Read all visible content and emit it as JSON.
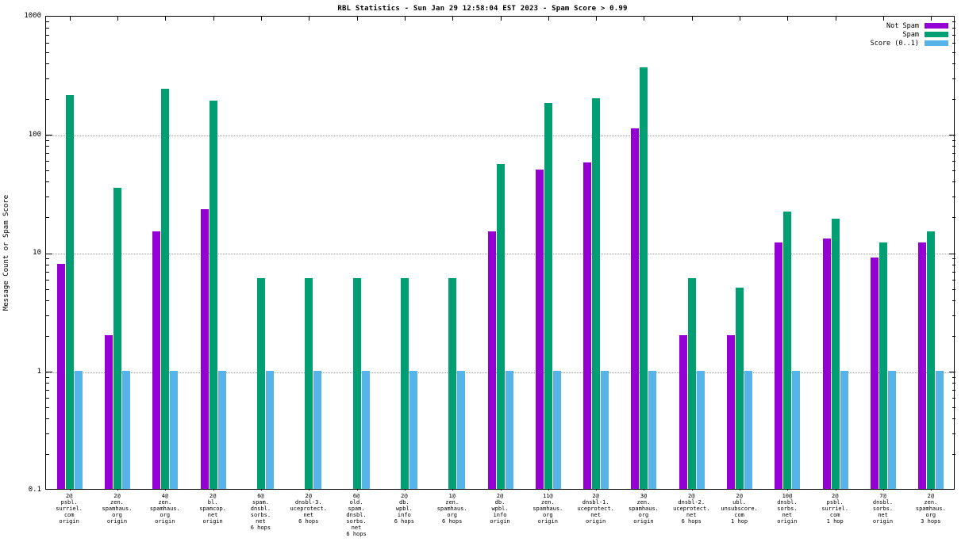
{
  "chart_data": {
    "type": "bar",
    "title": "RBL Statistics - Sun Jan 29 12:58:04 EST 2023 - Spam Score > 0.99",
    "xlabel": "",
    "ylabel": "Message Count or Spam Score",
    "yscale": "log",
    "ylim": [
      0.1,
      1000
    ],
    "ytick_values": [
      0.1,
      1,
      10,
      100,
      1000
    ],
    "ytick_labels": [
      "0.1",
      "1",
      "10",
      "100",
      "1000"
    ],
    "grid": "horizontal-dotted",
    "legend_position": "top-right",
    "categories": [
      [
        "2@",
        "psbl.",
        "surriel.",
        "com",
        "origin"
      ],
      [
        "2@",
        "zen.",
        "spamhaus.",
        "org",
        "origin"
      ],
      [
        "4@",
        "zen.",
        "spamhaus.",
        "org",
        "origin"
      ],
      [
        "2@",
        "bl.",
        "spamcop.",
        "net",
        "origin"
      ],
      [
        "6@",
        "spam.",
        "dnsbl.",
        "sorbs.",
        "net",
        "6 hops"
      ],
      [
        "2@",
        "dnsbl-3.",
        "uceprotect.",
        "net",
        "6 hops"
      ],
      [
        "6@",
        "old.",
        "spam.",
        "dnsbl.",
        "sorbs.",
        "net",
        "6 hops"
      ],
      [
        "2@",
        "db.",
        "wpbl.",
        "info",
        "6 hops"
      ],
      [
        "1@",
        "zen.",
        "spamhaus.",
        "org",
        "6 hops"
      ],
      [
        "2@",
        "db.",
        "wpbl.",
        "info",
        "origin"
      ],
      [
        "11@",
        "zen.",
        "spamhaus.",
        "org",
        "origin"
      ],
      [
        "2@",
        "dnsbl-1.",
        "uceprotect.",
        "net",
        "origin"
      ],
      [
        "3@",
        "zen.",
        "spamhaus.",
        "org",
        "origin"
      ],
      [
        "2@",
        "dnsbl-2.",
        "uceprotect.",
        "net",
        "6 hops"
      ],
      [
        "2@",
        "ubl.",
        "unsubscore.",
        "com",
        "1 hop"
      ],
      [
        "10@",
        "dnsbl.",
        "sorbs.",
        "net",
        "origin"
      ],
      [
        "2@",
        "psbl.",
        "surriel.",
        "com",
        "1 hop"
      ],
      [
        "7@",
        "dnsbl.",
        "sorbs.",
        "net",
        "origin"
      ],
      [
        "2@",
        "zen.",
        "spamhaus.",
        "org",
        "3 hops"
      ]
    ],
    "series": [
      {
        "name": "Not Spam",
        "key": "not-spam",
        "color": "#9400d3",
        "values": [
          8,
          2,
          15,
          23,
          null,
          null,
          null,
          null,
          null,
          15,
          50,
          57,
          110,
          2,
          2,
          12,
          13,
          9,
          12
        ]
      },
      {
        "name": "Spam",
        "key": "spam",
        "color": "#009e73",
        "values": [
          210,
          35,
          240,
          190,
          6,
          6,
          6,
          6,
          6,
          55,
          180,
          200,
          360,
          6,
          5,
          22,
          19,
          12,
          15
        ]
      },
      {
        "name": "Score (0..1)",
        "key": "score",
        "color": "#56b4e9",
        "values": [
          1,
          1,
          1,
          1,
          1,
          1,
          1,
          1,
          1,
          1,
          1,
          1,
          1,
          1,
          1,
          1,
          1,
          1,
          1
        ]
      }
    ]
  }
}
